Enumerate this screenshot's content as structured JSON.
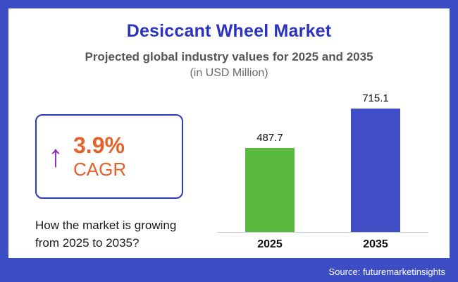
{
  "header": {
    "title": "Desiccant Wheel Market",
    "subtitle": "Projected global industry values for 2025 and 2035",
    "subtitle2": "(in USD Million)"
  },
  "cagr": {
    "arrow": "↑",
    "value": "3.9%",
    "label": "CAGR",
    "caption_line1": "How the market is growing",
    "caption_line2": "from 2025 to 2035?"
  },
  "footer": {
    "source": "Source: futuremarketinsights"
  },
  "colors": {
    "frame_blue": "#3d4ec4",
    "title_blue": "#2b32c0",
    "accent_orange": "#e2622b",
    "arrow_purple": "#8a2bb8",
    "bar_2025_green": "#5aba3f",
    "bar_2035_blue": "#3f4ec7"
  },
  "chart_data": {
    "type": "bar",
    "categories": [
      "2025",
      "2035"
    ],
    "values": [
      487.7,
      715.1
    ],
    "value_labels": [
      "487.7",
      "715.1"
    ],
    "bar_colors": [
      "#5aba3f",
      "#3f4ec7"
    ],
    "title": "Desiccant Wheel Market",
    "xlabel": "",
    "ylabel": "USD Million",
    "ylim": [
      0,
      800
    ],
    "grid": false,
    "legend": false
  }
}
